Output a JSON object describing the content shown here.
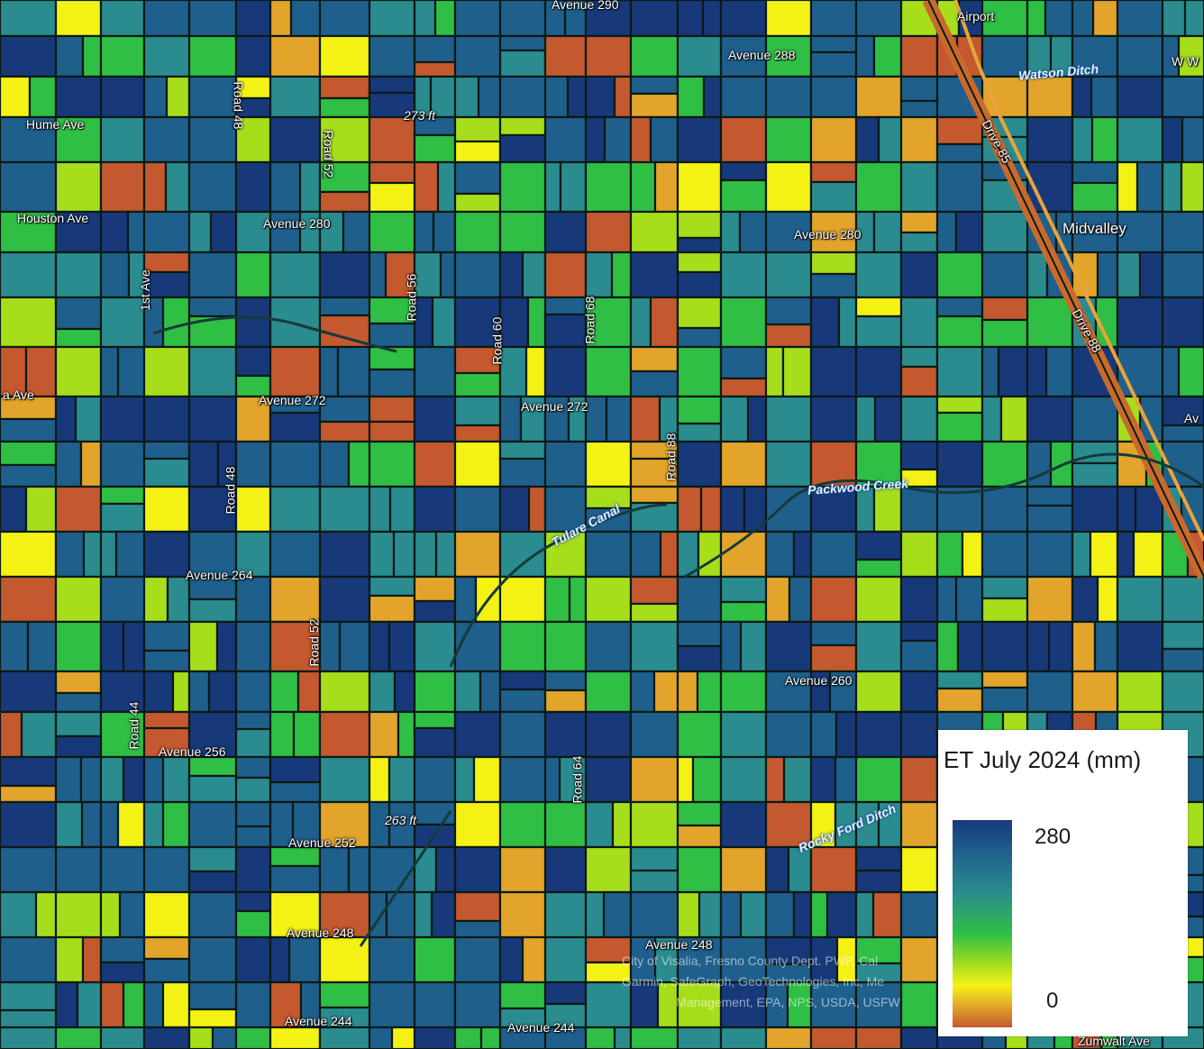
{
  "labels": [
    {
      "text": "Avenue 290",
      "kind": "road"
    },
    {
      "text": "Airport",
      "kind": "road"
    },
    {
      "text": "Avenue 288",
      "kind": "road"
    },
    {
      "text": "Watson Ditch",
      "kind": "water"
    },
    {
      "text": "W W",
      "kind": "road"
    },
    {
      "text": "Hume Ave",
      "kind": "road"
    },
    {
      "text": "Road 48",
      "kind": "road"
    },
    {
      "text": "273 ft",
      "kind": "road"
    },
    {
      "text": "Road 52",
      "kind": "road"
    },
    {
      "text": "Drive 85",
      "kind": "road"
    },
    {
      "text": "Houston Ave",
      "kind": "road"
    },
    {
      "text": "Avenue 280",
      "kind": "road"
    },
    {
      "text": "Avenue 280",
      "kind": "road"
    },
    {
      "text": "Midvalley",
      "kind": "city"
    },
    {
      "text": "1st Ave",
      "kind": "road"
    },
    {
      "text": "Road 56",
      "kind": "road"
    },
    {
      "text": "Road 60",
      "kind": "road"
    },
    {
      "text": "Road 68",
      "kind": "road"
    },
    {
      "text": "Drive 88",
      "kind": "road"
    },
    {
      "text": "a Ave",
      "kind": "road"
    },
    {
      "text": "Avenue 272",
      "kind": "road"
    },
    {
      "text": "Avenue 272",
      "kind": "road"
    },
    {
      "text": "Av",
      "kind": "road"
    },
    {
      "text": "Road 88",
      "kind": "road"
    },
    {
      "text": "Packwood Creek",
      "kind": "water"
    },
    {
      "text": "Road 48",
      "kind": "road"
    },
    {
      "text": "Tulare Canal",
      "kind": "water"
    },
    {
      "text": "Avenue 264",
      "kind": "road"
    },
    {
      "text": "Road 52",
      "kind": "road"
    },
    {
      "text": "Avenue 260",
      "kind": "road"
    },
    {
      "text": "Road 44",
      "kind": "road"
    },
    {
      "text": "Avenue 256",
      "kind": "road"
    },
    {
      "text": "Road 64",
      "kind": "road"
    },
    {
      "text": "263 ft",
      "kind": "road"
    },
    {
      "text": "Rocky Ford Ditch",
      "kind": "water"
    },
    {
      "text": "Avenue 252",
      "kind": "road"
    },
    {
      "text": "Avenue 248",
      "kind": "road"
    },
    {
      "text": "Avenue 248",
      "kind": "road"
    },
    {
      "text": "Avenue 244",
      "kind": "road"
    },
    {
      "text": "Avenue 244",
      "kind": "road"
    },
    {
      "text": "Zumwalt Ave",
      "kind": "road"
    }
  ],
  "attribution": [
    "City of Visalia, Fresno County Dept. PWP, Cal",
    "Garmin, SafeGraph, GeoTechnologies, Inc, Me",
    "Management, EPA, NPS, USDA, USFW"
  ],
  "legend": {
    "title": "ET July 2024 (mm)",
    "max_label": "280",
    "min_label": "0",
    "colors": [
      "#17397a",
      "#1f5f8c",
      "#2a8c8f",
      "#2fbf45",
      "#a7de1c",
      "#f4f215",
      "#e2a42a",
      "#c4582e"
    ]
  }
}
